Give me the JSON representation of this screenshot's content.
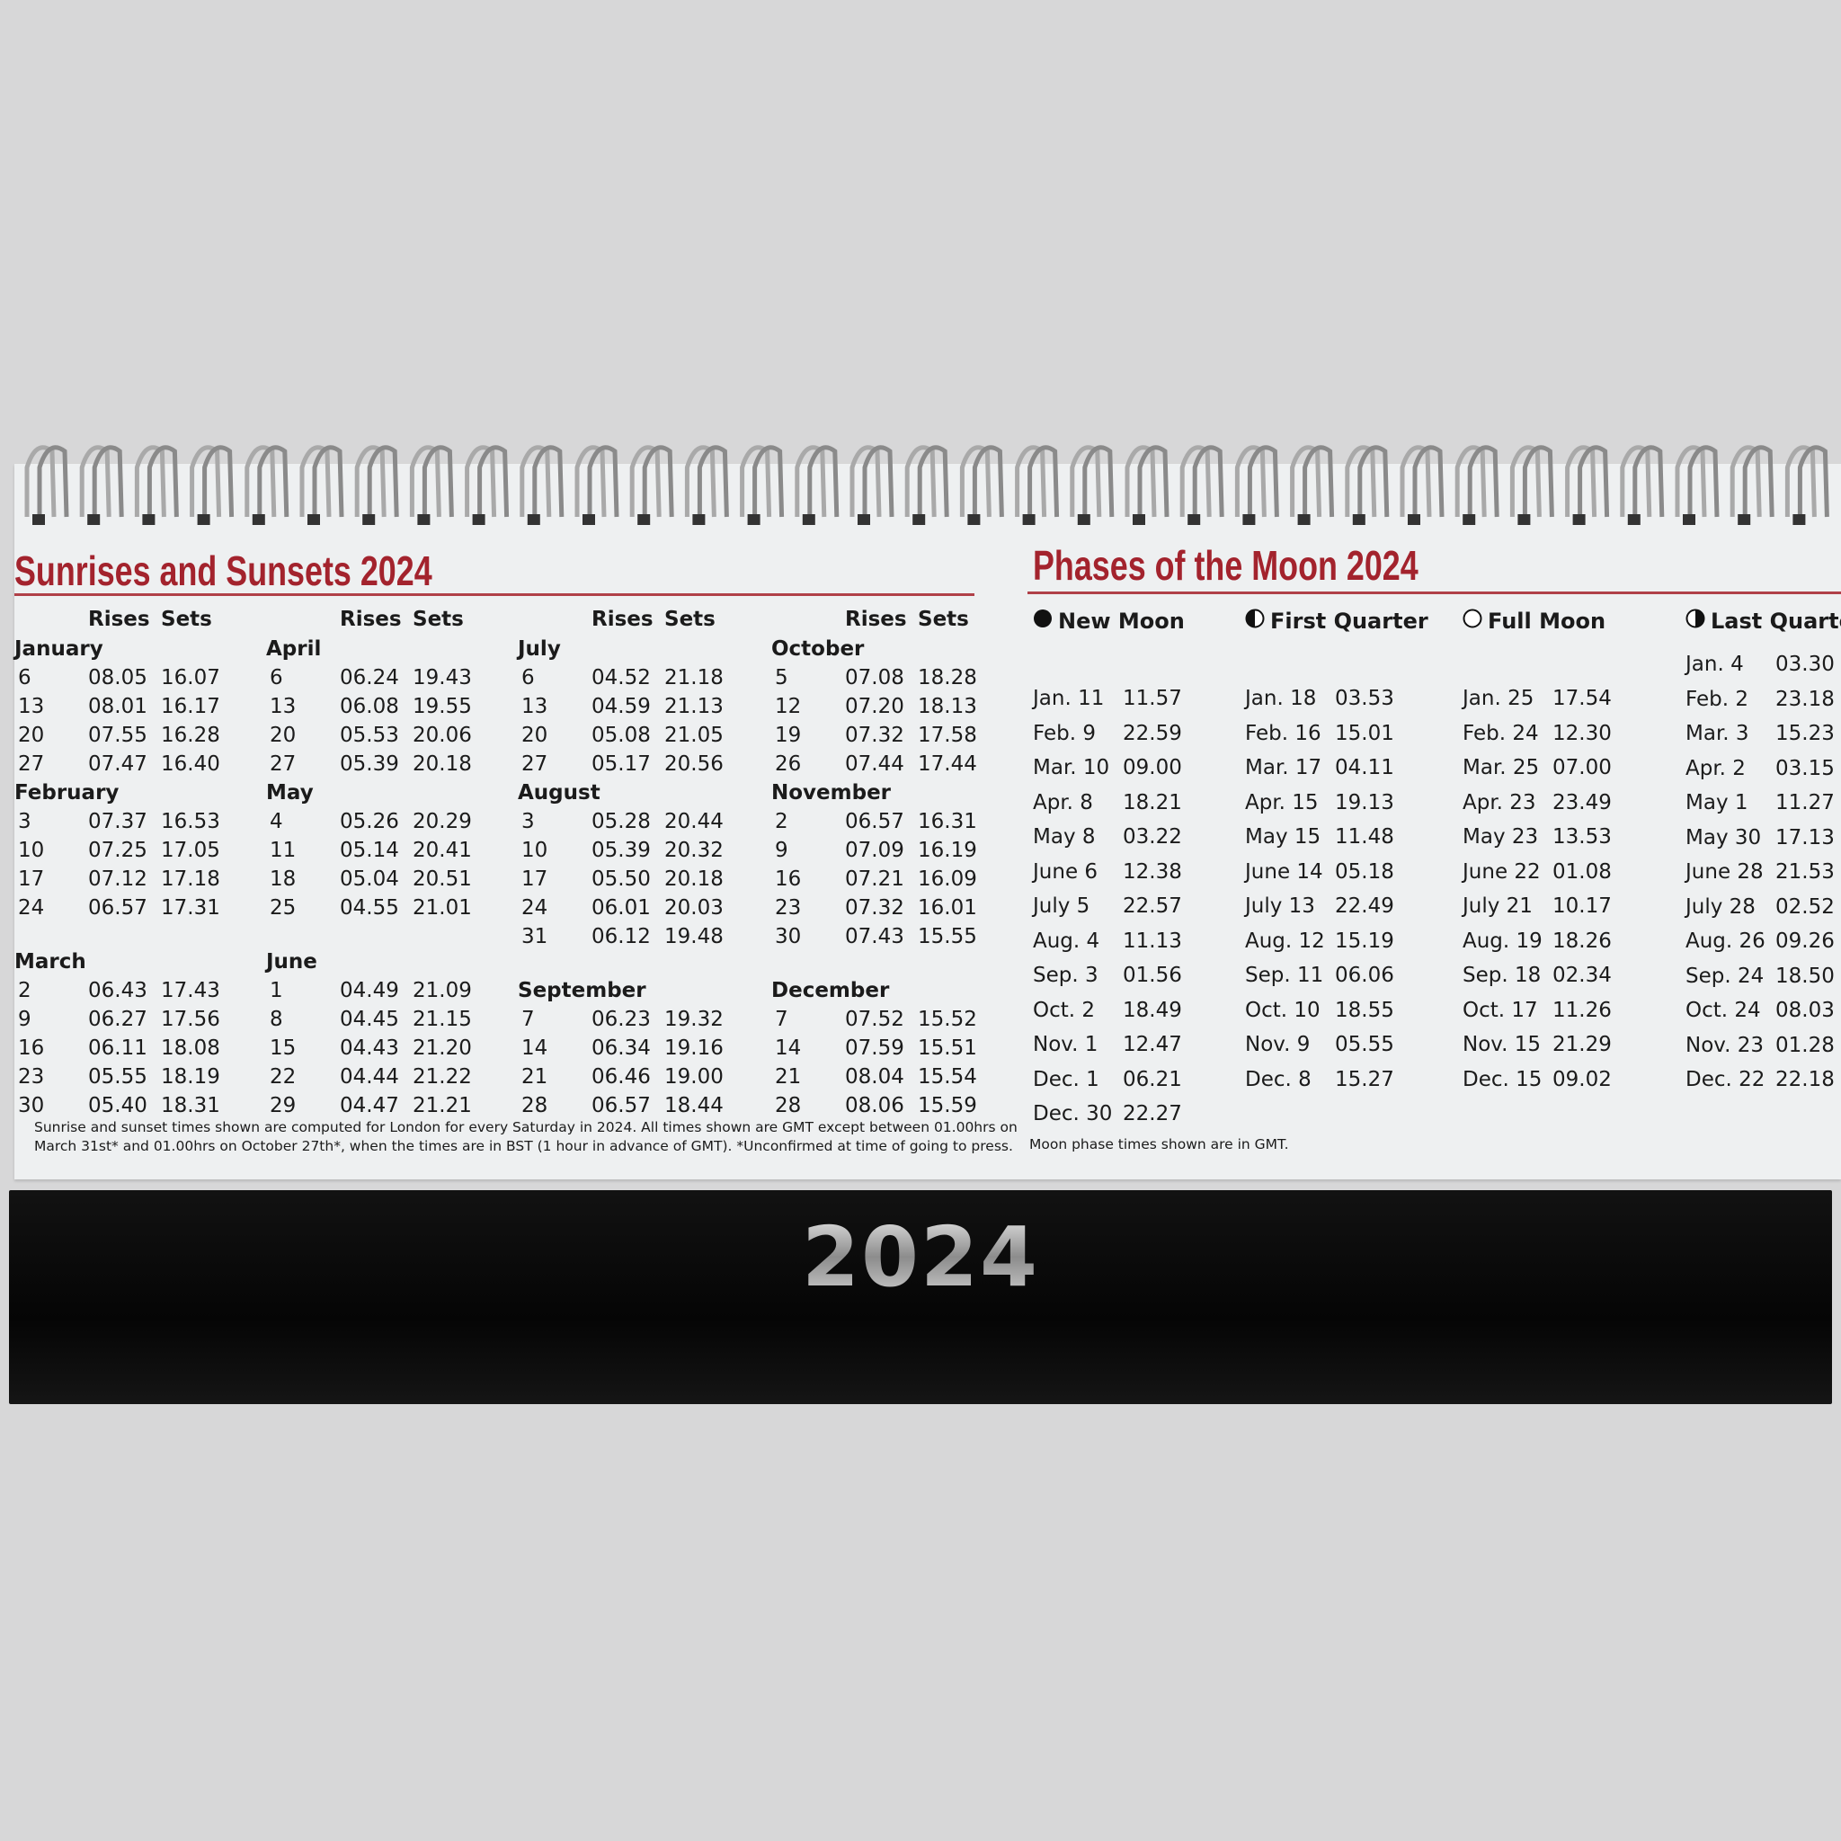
{
  "sunrise": {
    "title": "Sunrises and Sunsets 2024",
    "col_rises": "Rises",
    "col_sets": "Sets",
    "groups": [
      {
        "months": [
          {
            "name": "January",
            "rows": [
              [
                "6",
                "08.05",
                "16.07"
              ],
              [
                "13",
                "08.01",
                "16.17"
              ],
              [
                "20",
                "07.55",
                "16.28"
              ],
              [
                "27",
                "07.47",
                "16.40"
              ]
            ]
          },
          {
            "name": "February",
            "rows": [
              [
                "3",
                "07.37",
                "16.53"
              ],
              [
                "10",
                "07.25",
                "17.05"
              ],
              [
                "17",
                "07.12",
                "17.18"
              ],
              [
                "24",
                "06.57",
                "17.31"
              ]
            ]
          },
          {
            "name": "March",
            "rows": [
              [
                "2",
                "06.43",
                "17.43"
              ],
              [
                "9",
                "06.27",
                "17.56"
              ],
              [
                "16",
                "06.11",
                "18.08"
              ],
              [
                "23",
                "05.55",
                "18.19"
              ],
              [
                "30",
                "05.40",
                "18.31"
              ]
            ]
          }
        ]
      },
      {
        "months": [
          {
            "name": "April",
            "rows": [
              [
                "6",
                "06.24",
                "19.43"
              ],
              [
                "13",
                "06.08",
                "19.55"
              ],
              [
                "20",
                "05.53",
                "20.06"
              ],
              [
                "27",
                "05.39",
                "20.18"
              ]
            ]
          },
          {
            "name": "May",
            "rows": [
              [
                "4",
                "05.26",
                "20.29"
              ],
              [
                "11",
                "05.14",
                "20.41"
              ],
              [
                "18",
                "05.04",
                "20.51"
              ],
              [
                "25",
                "04.55",
                "21.01"
              ]
            ]
          },
          {
            "name": "June",
            "rows": [
              [
                "1",
                "04.49",
                "21.09"
              ],
              [
                "8",
                "04.45",
                "21.15"
              ],
              [
                "15",
                "04.43",
                "21.20"
              ],
              [
                "22",
                "04.44",
                "21.22"
              ],
              [
                "29",
                "04.47",
                "21.21"
              ]
            ]
          }
        ]
      },
      {
        "months": [
          {
            "name": "July",
            "rows": [
              [
                "6",
                "04.52",
                "21.18"
              ],
              [
                "13",
                "04.59",
                "21.13"
              ],
              [
                "20",
                "05.08",
                "21.05"
              ],
              [
                "27",
                "05.17",
                "20.56"
              ]
            ]
          },
          {
            "name": "August",
            "rows": [
              [
                "3",
                "05.28",
                "20.44"
              ],
              [
                "10",
                "05.39",
                "20.32"
              ],
              [
                "17",
                "05.50",
                "20.18"
              ],
              [
                "24",
                "06.01",
                "20.03"
              ],
              [
                "31",
                "06.12",
                "19.48"
              ]
            ]
          },
          {
            "name": "September",
            "rows": [
              [
                "7",
                "06.23",
                "19.32"
              ],
              [
                "14",
                "06.34",
                "19.16"
              ],
              [
                "21",
                "06.46",
                "19.00"
              ],
              [
                "28",
                "06.57",
                "18.44"
              ]
            ]
          }
        ]
      },
      {
        "months": [
          {
            "name": "October",
            "rows": [
              [
                "5",
                "07.08",
                "18.28"
              ],
              [
                "12",
                "07.20",
                "18.13"
              ],
              [
                "19",
                "07.32",
                "17.58"
              ],
              [
                "26",
                "07.44",
                "17.44"
              ]
            ]
          },
          {
            "name": "November",
            "rows": [
              [
                "2",
                "06.57",
                "16.31"
              ],
              [
                "9",
                "07.09",
                "16.19"
              ],
              [
                "16",
                "07.21",
                "16.09"
              ],
              [
                "23",
                "07.32",
                "16.01"
              ],
              [
                "30",
                "07.43",
                "15.55"
              ]
            ]
          },
          {
            "name": "December",
            "rows": [
              [
                "7",
                "07.52",
                "15.52"
              ],
              [
                "14",
                "07.59",
                "15.51"
              ],
              [
                "21",
                "08.04",
                "15.54"
              ],
              [
                "28",
                "08.06",
                "15.59"
              ]
            ]
          }
        ]
      }
    ],
    "footnote": [
      "Sunrise and sunset times shown are computed for London for every Saturday in 2024.  All times shown are GMT except between 01.00hrs on",
      "March 31st* and 01.00hrs on October 27th*, when the times are in BST (1 hour in advance of GMT). *Unconfirmed at time of going to press."
    ]
  },
  "moon": {
    "title": "Phases of the Moon 2024",
    "phases": [
      {
        "name": "New Moon",
        "icon": "new-moon-icon",
        "rows": [
          [
            "Jan. 11",
            "11.57"
          ],
          [
            "Feb. 9",
            "22.59"
          ],
          [
            "Mar. 10",
            "09.00"
          ],
          [
            "Apr. 8",
            "18.21"
          ],
          [
            "May 8",
            "03.22"
          ],
          [
            "June 6",
            "12.38"
          ],
          [
            "July 5",
            "22.57"
          ],
          [
            "Aug. 4",
            "11.13"
          ],
          [
            "Sep. 3",
            "01.56"
          ],
          [
            "Oct. 2",
            "18.49"
          ],
          [
            "Nov. 1",
            "12.47"
          ],
          [
            "Dec. 1",
            "06.21"
          ],
          [
            "Dec. 30",
            "22.27"
          ]
        ]
      },
      {
        "name": "First Quarter",
        "icon": "first-quarter-icon",
        "rows": [
          [
            "Jan. 18",
            "03.53"
          ],
          [
            "Feb. 16",
            "15.01"
          ],
          [
            "Mar. 17",
            "04.11"
          ],
          [
            "Apr. 15",
            "19.13"
          ],
          [
            "May 15",
            "11.48"
          ],
          [
            "June 14",
            "05.18"
          ],
          [
            "July 13",
            "22.49"
          ],
          [
            "Aug. 12",
            "15.19"
          ],
          [
            "Sep. 11",
            "06.06"
          ],
          [
            "Oct. 10",
            "18.55"
          ],
          [
            "Nov. 9",
            "05.55"
          ],
          [
            "Dec. 8",
            "15.27"
          ]
        ]
      },
      {
        "name": "Full Moon",
        "icon": "full-moon-icon",
        "rows": [
          [
            "Jan. 25",
            "17.54"
          ],
          [
            "Feb. 24",
            "12.30"
          ],
          [
            "Mar. 25",
            "07.00"
          ],
          [
            "Apr. 23",
            "23.49"
          ],
          [
            "May 23",
            "13.53"
          ],
          [
            "June 22",
            "01.08"
          ],
          [
            "July 21",
            "10.17"
          ],
          [
            "Aug. 19",
            "18.26"
          ],
          [
            "Sep. 18",
            "02.34"
          ],
          [
            "Oct. 17",
            "11.26"
          ],
          [
            "Nov. 15",
            "21.29"
          ],
          [
            "Dec. 15",
            "09.02"
          ]
        ]
      },
      {
        "name": "Last Quarter",
        "icon": "last-quarter-icon",
        "rows": [
          [
            "Jan. 4",
            "03.30"
          ],
          [
            "Feb. 2",
            "23.18"
          ],
          [
            "Mar. 3",
            "15.23"
          ],
          [
            "Apr. 2",
            "03.15"
          ],
          [
            "May 1",
            "11.27"
          ],
          [
            "May 30",
            "17.13"
          ],
          [
            "June 28",
            "21.53"
          ],
          [
            "July 28",
            "02.52"
          ],
          [
            "Aug. 26",
            "09.26"
          ],
          [
            "Sep. 24",
            "18.50"
          ],
          [
            "Oct. 24",
            "08.03"
          ],
          [
            "Nov. 23",
            "01.28"
          ],
          [
            "Dec. 22",
            "22.18"
          ]
        ]
      }
    ],
    "footnote": "Moon phase times shown are in GMT."
  },
  "base": {
    "year": "2024"
  },
  "colors": {
    "title_red": "#a3232d",
    "base_black": "#0a0a0a",
    "foil_silver": "#b9b9b9"
  }
}
